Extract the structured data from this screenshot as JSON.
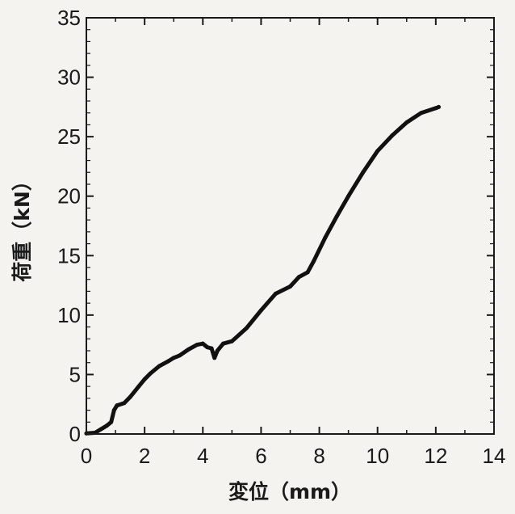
{
  "chart_data": {
    "type": "line",
    "xlabel": "変位（mm）",
    "ylabel": "荷重（kN）",
    "xlim": [
      0,
      14
    ],
    "ylim": [
      0,
      35
    ],
    "xticks": [
      0,
      2,
      4,
      6,
      8,
      10,
      12,
      14
    ],
    "yticks": [
      0,
      5,
      10,
      15,
      20,
      25,
      30,
      35
    ],
    "grid": false,
    "legend": "none",
    "line_color": "#111111",
    "series": [
      {
        "x": [
          0,
          0.3,
          0.5,
          0.7,
          0.85,
          0.95,
          1.05,
          1.3,
          1.5,
          1.8,
          2.0,
          2.2,
          2.5,
          2.8,
          3.0,
          3.2,
          3.5,
          3.8,
          4.0,
          4.15,
          4.3,
          4.4,
          4.5,
          4.7,
          5.0,
          5.5,
          6.0,
          6.5,
          7.0,
          7.3,
          7.6,
          7.8,
          8.2,
          8.6,
          9.0,
          9.5,
          10.0,
          10.5,
          11.0,
          11.5,
          12.0,
          12.1
        ],
        "y": [
          0.05,
          0.1,
          0.4,
          0.7,
          1.0,
          2.0,
          2.4,
          2.6,
          3.1,
          4.0,
          4.6,
          5.1,
          5.7,
          6.1,
          6.4,
          6.6,
          7.1,
          7.5,
          7.6,
          7.3,
          7.2,
          6.4,
          7.0,
          7.6,
          7.8,
          8.9,
          10.4,
          11.8,
          12.4,
          13.2,
          13.6,
          14.5,
          16.5,
          18.3,
          20.0,
          22.0,
          23.8,
          25.1,
          26.2,
          27.0,
          27.4,
          27.5
        ]
      }
    ]
  }
}
